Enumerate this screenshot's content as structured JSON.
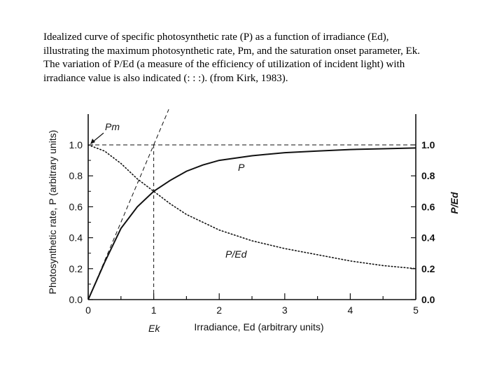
{
  "caption": {
    "lines": [
      "Idealized curve of specific photosynthetic rate (P) as a function of irradiance (Ed),",
      "illustrating the maximum photosynthetic rate, Pm, and the saturation onset parameter, Ek.",
      "The variation of P/Ed (a measure of the efficiency of utilization of incident light) with",
      "irradiance value is also indicated (: : :). (from Kirk, 1983)."
    ]
  },
  "chart_data": {
    "type": "line",
    "xlabel": "Irradiance, Ed (arbitrary units)",
    "ylabel": "Photosynthetic rate, P (arbitrary units)",
    "ylabel_right": "P/Ed",
    "xlim": [
      0,
      5
    ],
    "ylim": [
      0,
      1.1
    ],
    "x_ticks": [
      "0",
      "1",
      "2",
      "3",
      "4",
      "5"
    ],
    "y_ticks_left": [
      "0.0",
      "0.2",
      "0.4",
      "0.6",
      "0.8",
      "1.0"
    ],
    "y_ticks_right": [
      "0.0",
      "0.2",
      "0.4",
      "0.6",
      "0.8",
      "1.0"
    ],
    "annotations": {
      "pm": "Pm",
      "ek": "Ek",
      "p_curve": "P",
      "ped_curve": "P/Ed"
    },
    "series": [
      {
        "name": "P",
        "style": "solid",
        "x": [
          0,
          0.25,
          0.5,
          0.75,
          1.0,
          1.25,
          1.5,
          1.75,
          2.0,
          2.5,
          3.0,
          3.5,
          4.0,
          4.5,
          5.0
        ],
        "y": [
          0,
          0.24,
          0.46,
          0.6,
          0.7,
          0.77,
          0.83,
          0.87,
          0.9,
          0.93,
          0.95,
          0.96,
          0.97,
          0.975,
          0.98
        ]
      },
      {
        "name": "P/Ed",
        "style": "dotted",
        "x": [
          0,
          0.25,
          0.5,
          0.75,
          1.0,
          1.25,
          1.5,
          2.0,
          2.5,
          3.0,
          3.5,
          4.0,
          4.5,
          5.0
        ],
        "y": [
          1.0,
          0.96,
          0.88,
          0.78,
          0.7,
          0.62,
          0.55,
          0.45,
          0.38,
          0.33,
          0.29,
          0.25,
          0.22,
          0.2
        ]
      },
      {
        "name": "Pm",
        "style": "dashed",
        "x": [
          0,
          5
        ],
        "y": [
          1.0,
          1.0
        ]
      },
      {
        "name": "initial slope",
        "style": "dashed",
        "x": [
          0,
          1.23
        ],
        "y": [
          0,
          1.23
        ]
      }
    ]
  },
  "colors": {
    "ink": "#111111",
    "grid_ink": "#333333"
  }
}
